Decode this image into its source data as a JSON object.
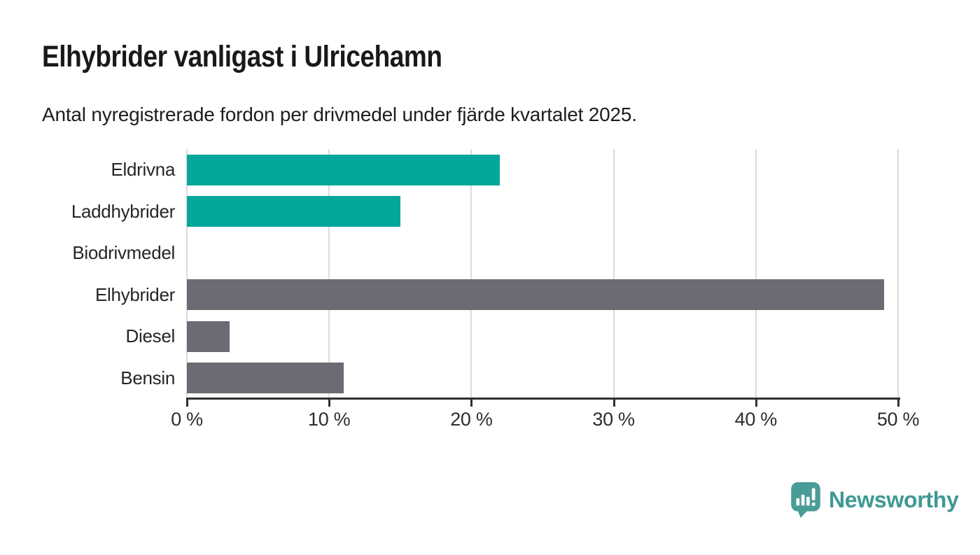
{
  "header": {
    "title": "Elhybrider vanligast i Ulricehamn",
    "subtitle": "Antal nyregistrerade fordon per drivmedel under fjärde kvartalet 2025."
  },
  "chart_data": {
    "type": "bar",
    "orientation": "horizontal",
    "title": "Elhybrider vanligast i Ulricehamn",
    "subtitle": "Antal nyregistrerade fordon per drivmedel under fjärde kvartalet 2025.",
    "categories": [
      "Eldrivna",
      "Laddhybrider",
      "Biodrivmedel",
      "Elhybrider",
      "Diesel",
      "Bensin"
    ],
    "values": [
      22,
      15,
      0,
      49,
      3,
      11
    ],
    "unit": "%",
    "xlim": [
      0,
      50
    ],
    "x_tick_values": [
      0,
      10,
      20,
      30,
      40,
      50
    ],
    "x_tick_labels": [
      "0 %",
      "10 %",
      "20 %",
      "30 %",
      "40 %",
      "50 %"
    ],
    "grid": "vertical-only",
    "legend": "none",
    "bar_colors": [
      "#05A69B",
      "#05A69B",
      "#6C6B74",
      "#6C6B74",
      "#6C6B74",
      "#6C6B74"
    ],
    "colors": {
      "highlight_teal": "#05A69B",
      "default_gray": "#6C6B74",
      "gridline": "#DCDCDC",
      "axis": "#303030"
    }
  },
  "footer": {
    "brand": "Newsworthy",
    "brand_color": "#3E9894",
    "logo_icon_color": "#4A9C97",
    "logo_icon": "newsworthy-bubble-chart-icon"
  }
}
